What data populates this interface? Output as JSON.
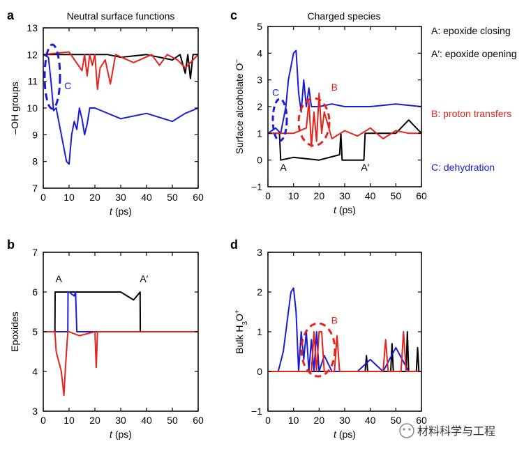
{
  "panel_letters": {
    "a": "a",
    "b": "b",
    "c": "c",
    "d": "d"
  },
  "titles": {
    "a": "Neutral surface functions",
    "c": "Charged species"
  },
  "legend": {
    "A": "A: epoxide closing",
    "A_prime": "A′: epoxide opening",
    "B": "B: proton transfers",
    "C": "C: dehydration"
  },
  "watermark": "材料科学与工程",
  "colors": {
    "black": "#000000",
    "red": "#e3231e",
    "blue": "#1a1adb"
  },
  "chart_data": [
    {
      "id": "a",
      "type": "line",
      "title": "Neutral surface functions",
      "xlabel": "t (ps)",
      "ylabel": "–OH groups",
      "xlim": [
        0,
        60
      ],
      "ylim": [
        7,
        13
      ],
      "xticks": [
        0,
        10,
        20,
        30,
        40,
        50,
        60
      ],
      "yticks": [
        7,
        8,
        9,
        10,
        11,
        12,
        13
      ],
      "annotations": [
        {
          "text": "C",
          "x": 9.5,
          "y": 10.7,
          "color": "blue"
        }
      ],
      "series": [
        {
          "color": "black",
          "x": [
            0,
            25,
            30,
            40,
            50,
            53,
            55,
            56,
            57,
            58,
            60
          ],
          "y": [
            12,
            12,
            11.9,
            12,
            11.8,
            12,
            11.3,
            12,
            11.1,
            12,
            12
          ]
        },
        {
          "color": "red",
          "x": [
            0,
            10,
            15,
            16,
            17,
            18,
            19,
            20,
            21,
            22,
            24,
            26,
            28,
            35,
            42,
            45,
            48,
            52,
            55,
            60
          ],
          "y": [
            12,
            12.1,
            11.4,
            12,
            11.2,
            12,
            11.6,
            12,
            10.7,
            11.5,
            11.8,
            10.9,
            12,
            11.7,
            12,
            11.6,
            12,
            11.8,
            11.5,
            12
          ]
        },
        {
          "color": "blue",
          "x": [
            0,
            2,
            3,
            4,
            5,
            6,
            7,
            8,
            9,
            10,
            11,
            12,
            13,
            14,
            15,
            16,
            17,
            18,
            20,
            30,
            40,
            50,
            55,
            60
          ],
          "y": [
            12,
            11.9,
            11,
            9.9,
            10,
            9.5,
            9,
            8.5,
            8,
            7.9,
            9,
            9.5,
            9.2,
            10,
            9.6,
            9,
            9.4,
            10,
            10,
            9.6,
            9.8,
            9.5,
            9.8,
            10
          ]
        }
      ]
    },
    {
      "id": "b",
      "type": "line",
      "xlabel": "t (ps)",
      "ylabel": "Epoxides",
      "xlim": [
        0,
        60
      ],
      "ylim": [
        3,
        7
      ],
      "xticks": [
        0,
        10,
        20,
        30,
        40,
        50,
        60
      ],
      "yticks": [
        3,
        4,
        5,
        6,
        7
      ],
      "annotations": [
        {
          "text": "A",
          "x": 6,
          "y": 6.25,
          "color": "black"
        },
        {
          "text": "A′",
          "x": 39,
          "y": 6.25,
          "color": "black"
        }
      ],
      "series": [
        {
          "color": "black",
          "x": [
            0,
            4.5,
            4.6,
            10,
            20,
            30,
            35,
            37.5,
            37.6,
            60
          ],
          "y": [
            5,
            5,
            6,
            6,
            6,
            6,
            5.8,
            6,
            5,
            5
          ]
        },
        {
          "color": "blue",
          "x": [
            0,
            9.5,
            9.6,
            10,
            12,
            12.5,
            13,
            13.1,
            60
          ],
          "y": [
            5,
            5,
            6,
            6,
            5.9,
            6,
            5,
            5,
            5
          ]
        },
        {
          "color": "red",
          "x": [
            0,
            4.5,
            5,
            7,
            8,
            8.5,
            9,
            9.5,
            10,
            14,
            20,
            20.5,
            21,
            22,
            60
          ],
          "y": [
            5,
            5,
            4.5,
            4,
            3.4,
            4,
            4.5,
            5,
            5,
            4.9,
            5,
            4.1,
            5,
            5,
            5
          ]
        }
      ]
    },
    {
      "id": "c",
      "type": "line",
      "title": "Charged species",
      "xlabel": "t (ps)",
      "ylabel": "Surface alcoholate O⁻",
      "xlim": [
        0,
        60
      ],
      "ylim": [
        -1,
        5
      ],
      "xticks": [
        0,
        10,
        20,
        30,
        40,
        50,
        60
      ],
      "yticks": [
        -1,
        0,
        1,
        2,
        3,
        4,
        5
      ],
      "annotations": [
        {
          "text": "C",
          "x": 3,
          "y": 2.4,
          "color": "blue"
        },
        {
          "text": "B",
          "x": 26,
          "y": 2.6,
          "color": "red"
        },
        {
          "text": "A",
          "x": 6,
          "y": -0.4,
          "color": "black"
        },
        {
          "text": "A′",
          "x": 38,
          "y": -0.4,
          "color": "black"
        }
      ],
      "series": [
        {
          "color": "black",
          "x": [
            0,
            4.5,
            5,
            10,
            20,
            28,
            28.5,
            29,
            37.5,
            38,
            50,
            55,
            60
          ],
          "y": [
            1,
            1,
            0,
            0.1,
            0,
            0.2,
            1,
            0,
            0,
            1,
            1,
            1.5,
            1
          ]
        },
        {
          "color": "blue",
          "x": [
            0,
            3,
            5,
            7,
            8,
            9,
            10,
            11,
            12,
            13,
            14,
            15,
            16,
            17,
            20,
            25,
            30,
            40,
            50,
            60
          ],
          "y": [
            1,
            1.2,
            1,
            2,
            3,
            3.5,
            4,
            4.1,
            2.5,
            1.8,
            3,
            2,
            2.7,
            2,
            2,
            2.1,
            2,
            2,
            2.1,
            2
          ]
        },
        {
          "color": "red",
          "x": [
            0,
            10,
            15,
            16,
            17,
            18,
            19,
            20,
            21,
            22,
            25,
            30,
            35,
            40,
            45,
            50,
            55,
            60
          ],
          "y": [
            1,
            1,
            1.2,
            2.2,
            0.5,
            1.8,
            0.7,
            2.5,
            1,
            1.8,
            0.8,
            1.1,
            0.9,
            1.2,
            0.8,
            1.1,
            1,
            1
          ]
        }
      ]
    },
    {
      "id": "d",
      "type": "line",
      "xlabel": "t (ps)",
      "ylabel": "Bulk H₃O⁺",
      "xlim": [
        0,
        60
      ],
      "ylim": [
        -1,
        3
      ],
      "xticks": [
        0,
        10,
        20,
        30,
        40,
        50,
        60
      ],
      "yticks": [
        -1,
        0,
        1,
        2,
        3
      ],
      "annotations": [
        {
          "text": "B",
          "x": 26,
          "y": 1.2,
          "color": "red"
        }
      ],
      "series": [
        {
          "color": "black",
          "x": [
            0,
            38,
            38.5,
            39,
            48,
            48.5,
            49,
            54,
            54.5,
            55,
            58,
            58.5,
            59,
            60
          ],
          "y": [
            0,
            0,
            0.4,
            0,
            0,
            0.7,
            0,
            0,
            1,
            0,
            0,
            0.6,
            0,
            0
          ]
        },
        {
          "color": "blue",
          "x": [
            0,
            4,
            6,
            7,
            8,
            9,
            10,
            11,
            12,
            13,
            14,
            15,
            16,
            17,
            18,
            19,
            20,
            22,
            25,
            30,
            35,
            40,
            45,
            50,
            55,
            60
          ],
          "y": [
            0,
            0,
            0.5,
            1,
            1.5,
            2,
            2.1,
            1.5,
            0,
            1,
            0.3,
            1,
            0,
            0.8,
            0,
            1,
            0,
            0.4,
            0,
            0,
            0,
            0.3,
            0,
            0.6,
            0,
            0
          ]
        },
        {
          "color": "red",
          "x": [
            0,
            17,
            18,
            19,
            20,
            21,
            22,
            23,
            26,
            27,
            28,
            45,
            46,
            47,
            52,
            53,
            54,
            60
          ],
          "y": [
            0,
            0,
            1,
            0,
            1,
            1,
            0,
            0,
            0,
            0.9,
            0,
            0,
            0.8,
            0,
            0,
            1,
            0,
            0
          ]
        }
      ]
    }
  ]
}
